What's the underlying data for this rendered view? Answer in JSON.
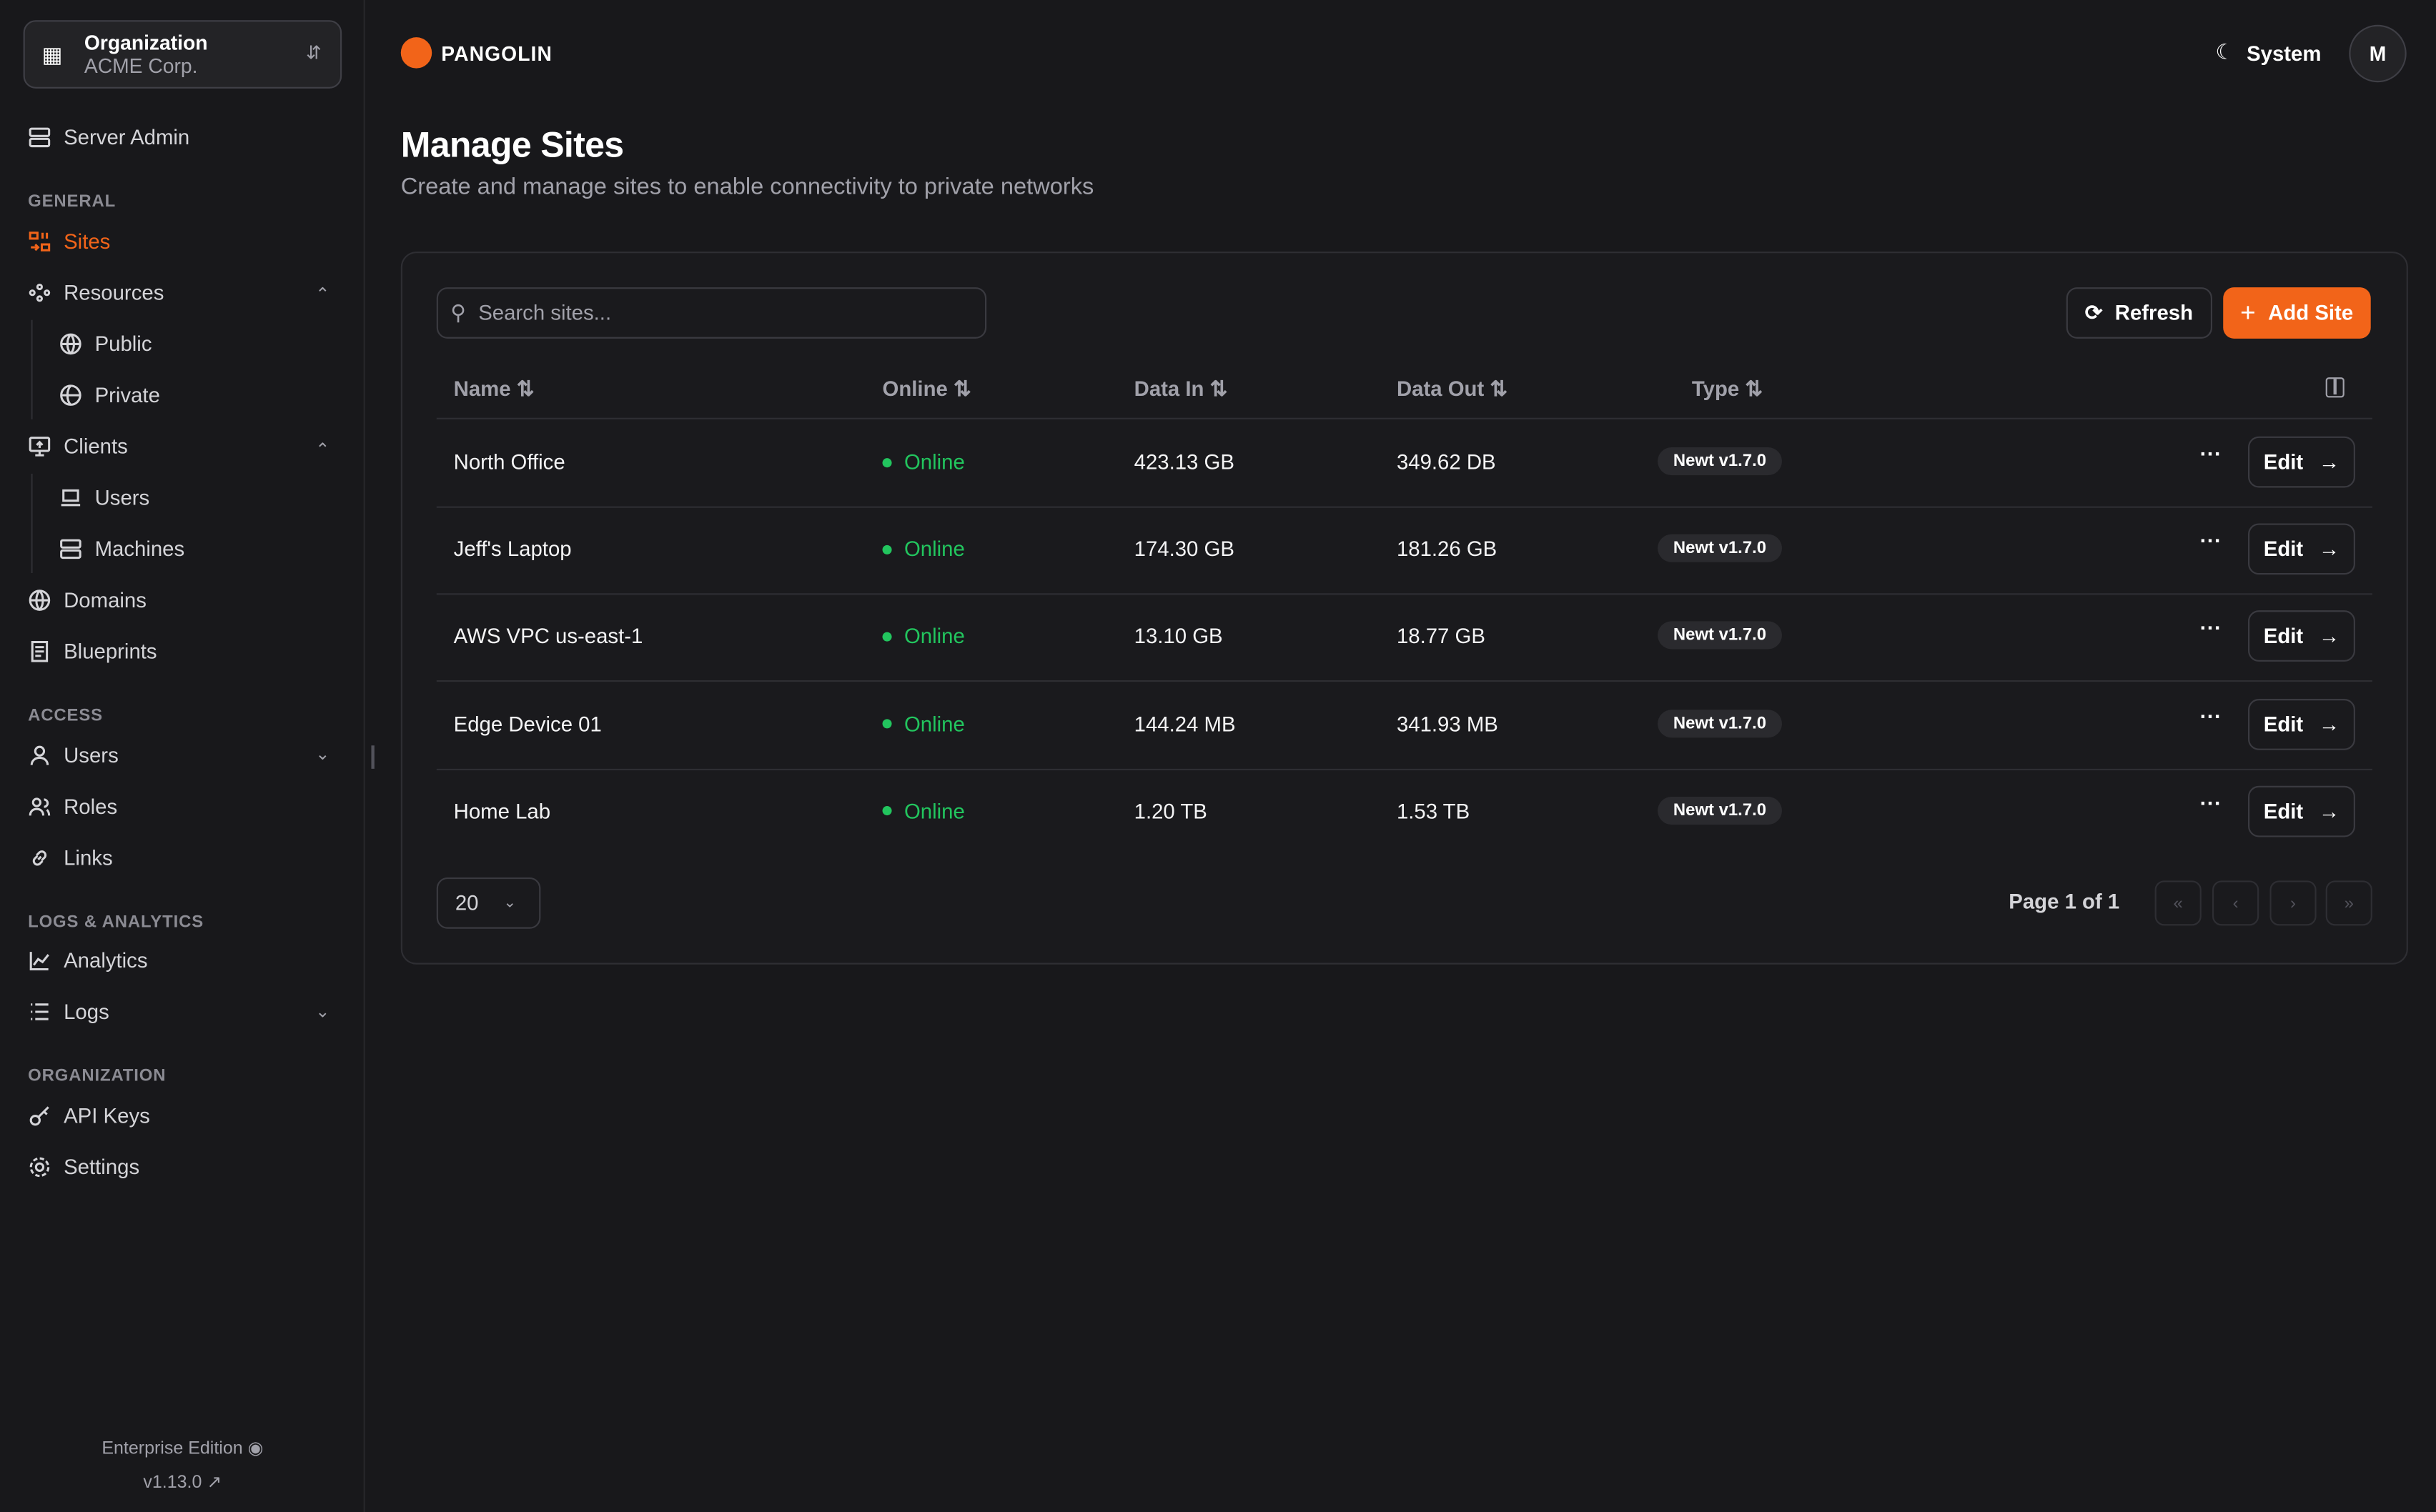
{
  "org": {
    "label": "Organization",
    "name": "ACME Corp."
  },
  "sidebar": {
    "server_admin": "Server Admin",
    "sections": {
      "general": "GENERAL",
      "access": "ACCESS",
      "logs": "LOGS & ANALYTICS",
      "organization": "ORGANIZATION"
    },
    "items": {
      "sites": "Sites",
      "resources": "Resources",
      "public": "Public",
      "private": "Private",
      "clients": "Clients",
      "users_client": "Users",
      "machines": "Machines",
      "domains": "Domains",
      "blueprints": "Blueprints",
      "users": "Users",
      "roles": "Roles",
      "links": "Links",
      "analytics": "Analytics",
      "logs": "Logs",
      "api_keys": "API Keys",
      "settings": "Settings"
    },
    "active": "Sites",
    "footer": {
      "edition": "Enterprise Edition",
      "version": "v1.13.0"
    }
  },
  "header": {
    "brand": "PANGOLIN",
    "theme": "System",
    "avatar": "M"
  },
  "page": {
    "title": "Manage Sites",
    "subtitle": "Create and manage sites to enable connectivity to private networks"
  },
  "toolbar": {
    "search_placeholder": "Search sites...",
    "refresh": "Refresh",
    "add": "Add Site"
  },
  "table": {
    "columns": [
      "Name",
      "Online",
      "Data In",
      "Data Out",
      "Type"
    ],
    "rows": [
      {
        "name": "North Office",
        "status": "Online",
        "data_in": "423.13 GB",
        "data_out": "349.62 DB",
        "type": "Newt v1.7.0",
        "action": "Edit"
      },
      {
        "name": "Jeff's Laptop",
        "status": "Online",
        "data_in": "174.30 GB",
        "data_out": "181.26 GB",
        "type": "Newt v1.7.0",
        "action": "Edit"
      },
      {
        "name": "AWS VPC us-east-1",
        "status": "Online",
        "data_in": "13.10 GB",
        "data_out": "18.77 GB",
        "type": "Newt v1.7.0",
        "action": "Edit"
      },
      {
        "name": "Edge Device 01",
        "status": "Online",
        "data_in": "144.24 MB",
        "data_out": "341.93 MB",
        "type": "Newt v1.7.0",
        "action": "Edit"
      },
      {
        "name": "Home Lab",
        "status": "Online",
        "data_in": "1.20 TB",
        "data_out": "1.53 TB",
        "type": "Newt v1.7.0",
        "action": "Edit"
      }
    ]
  },
  "pagination": {
    "page_size": "20",
    "info": "Page 1 of 1"
  },
  "colors": {
    "accent": "#f26419",
    "online": "#22c55e"
  }
}
